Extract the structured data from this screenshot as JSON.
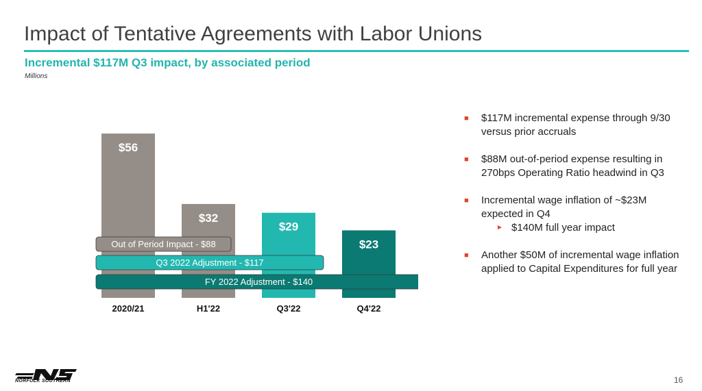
{
  "header": {
    "title": "Impact of Tentative Agreements with Labor Unions",
    "subtitle": "Incremental $117M Q3 impact, by associated period",
    "units": "Millions"
  },
  "colors": {
    "accent": "#2bbfb5",
    "gray_bar": "#958e88",
    "teal_light": "#22b8b0",
    "teal_dark": "#0b7a72",
    "bullet": "#e2452e"
  },
  "chart_data": {
    "type": "bar",
    "categories": [
      "2020/21",
      "H1'22",
      "Q3'22",
      "Q4'22"
    ],
    "values": [
      56,
      32,
      29,
      23
    ],
    "value_labels": [
      "$56",
      "$32",
      "$29",
      "$23"
    ],
    "bar_colors": [
      "#958e88",
      "#958e88",
      "#22b8b0",
      "#0b7a72"
    ],
    "ylim": [
      0,
      56
    ],
    "grid": false,
    "legend": "none",
    "annotations": [
      {
        "label": "Out of Period Impact - $88",
        "from": "2020/21",
        "to": "H1'22",
        "color": "#958e88"
      },
      {
        "label": "Q3 2022 Adjustment - $117",
        "from": "2020/21",
        "to": "Q3'22",
        "color": "#22b8b0"
      },
      {
        "label": "FY 2022 Adjustment - $140",
        "from": "2020/21",
        "to": "Q4'22",
        "color": "#0b7a72"
      }
    ]
  },
  "bullets": [
    {
      "text": "$117M incremental expense through 9/30 versus prior accruals",
      "subs": []
    },
    {
      "text": "$88M out-of-period expense resulting in 270bps Operating Ratio headwind in Q3",
      "subs": []
    },
    {
      "text": "Incremental wage inflation of ~$23M expected in Q4",
      "subs": [
        "$140M full year impact"
      ]
    },
    {
      "text": "Another $50M of incremental wage inflation applied to Capital Expenditures for full year",
      "subs": []
    }
  ],
  "logo": {
    "icon": "norfolk-southern-logo",
    "text": "NORFOLK SOUTHERN"
  },
  "page_number": "16"
}
